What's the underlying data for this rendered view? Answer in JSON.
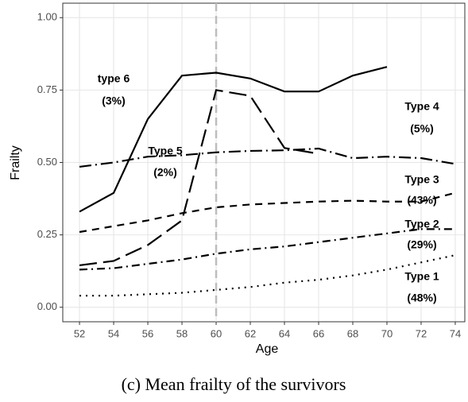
{
  "chart_data": {
    "type": "line",
    "x_label": "Age",
    "y_label": "Frailty",
    "caption": "(c) Mean frailty of the survivors",
    "x": [
      52,
      54,
      56,
      58,
      60,
      62,
      64,
      66,
      68,
      70,
      72,
      74
    ],
    "series": [
      {
        "color": "#000000",
        "linetype": "dotted",
        "values": [
          0.04,
          0.04,
          0.045,
          0.05,
          0.06,
          0.07,
          0.085,
          0.095,
          0.11,
          0.13,
          0.155,
          0.18
        ]
      },
      {
        "color": "#000000",
        "linetype": "dotdash",
        "values": [
          0.13,
          0.135,
          0.15,
          0.165,
          0.185,
          0.2,
          0.21,
          0.225,
          0.24,
          0.255,
          0.27,
          0.27
        ]
      },
      {
        "color": "#000000",
        "linetype": "dashed",
        "values": [
          0.26,
          0.28,
          0.3,
          0.325,
          0.345,
          0.355,
          0.36,
          0.365,
          0.368,
          0.365,
          0.365,
          0.395
        ]
      },
      {
        "color": "#000000",
        "linetype": "longdashdot",
        "values": [
          0.485,
          0.5,
          0.52,
          0.525,
          0.535,
          0.54,
          0.542,
          0.548,
          0.515,
          0.52,
          0.515,
          0.495
        ]
      },
      {
        "color": "#000000",
        "linetype": "longdash",
        "values": [
          0.145,
          0.16,
          0.215,
          0.3,
          0.75,
          0.73,
          0.55,
          0.53,
          null,
          null,
          null,
          null
        ]
      },
      {
        "color": "#000000",
        "linetype": "solid",
        "values": [
          0.33,
          0.395,
          0.65,
          0.8,
          0.81,
          0.79,
          0.745,
          0.745,
          0.8,
          0.83,
          null,
          null
        ]
      }
    ],
    "annotations": [
      "type 6",
      "(3%)",
      "Type 5",
      "(2%)",
      "Type 4",
      "(5%)",
      "Type 3",
      "(43%)",
      "Type 2",
      "(29%)",
      "Type 1",
      "(48%)"
    ],
    "vline": 60,
    "vline_color": "#bdbdbd",
    "xlim": [
      51.02,
      74.56
    ],
    "ylim": [
      -0.05,
      1.05
    ],
    "xticks": [
      52,
      54,
      56,
      58,
      60,
      62,
      64,
      66,
      68,
      70,
      72,
      74
    ],
    "yticks": [
      {
        "value": 0,
        "label": "0.00"
      },
      {
        "value": 0.25,
        "label": "0.25"
      },
      {
        "value": 0.5,
        "label": "0.50"
      },
      {
        "value": 0.75,
        "label": "0.75"
      },
      {
        "value": 1,
        "label": "1.00"
      }
    ],
    "grid": true
  }
}
